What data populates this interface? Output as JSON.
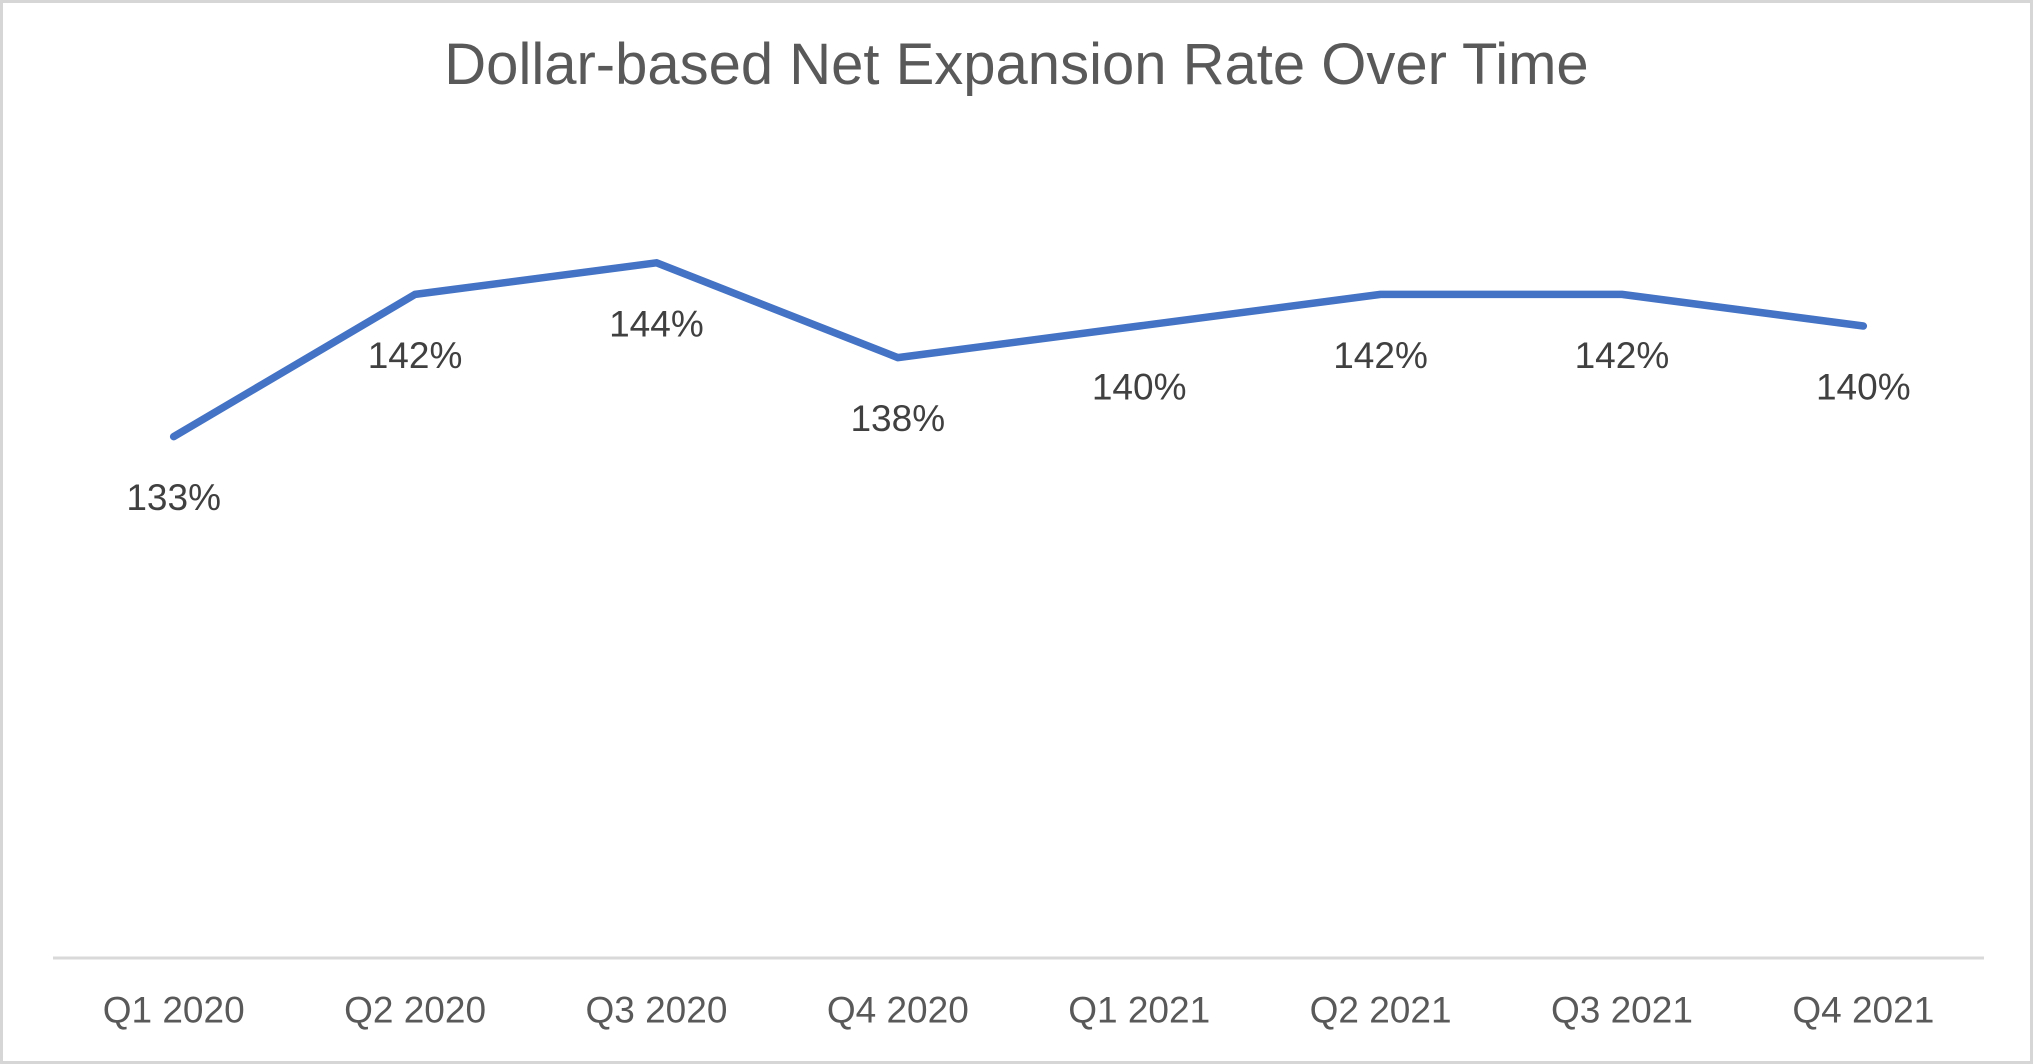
{
  "chart_data": {
    "type": "line",
    "title": "Dollar-based Net Expansion Rate Over Time",
    "categories": [
      "Q1 2020",
      "Q2 2020",
      "Q3 2020",
      "Q4 2020",
      "Q1 2021",
      "Q2 2021",
      "Q3 2021",
      "Q4 2021"
    ],
    "values": [
      133,
      142,
      144,
      138,
      140,
      142,
      142,
      140
    ],
    "data_labels": [
      "133%",
      "142%",
      "144%",
      "138%",
      "140%",
      "142%",
      "142%",
      "140%"
    ],
    "unit": "%",
    "xlabel": "",
    "ylabel": "",
    "ylim": [
      100,
      150
    ],
    "grid": false,
    "legend": "none",
    "y_axis_visible": false,
    "data_label_position": "below",
    "colors": {
      "line": "#4472C4",
      "axis_line": "#D9D9D9",
      "title": "#595959",
      "data_label": "#404040",
      "axis_label": "#595959",
      "frame_border": "#D6D6D6",
      "background": "#FFFFFF"
    }
  }
}
